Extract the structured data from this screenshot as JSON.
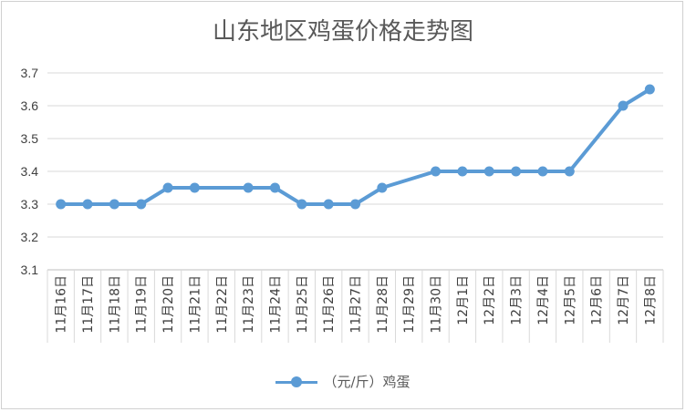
{
  "chart_data": {
    "type": "line",
    "title": "山东地区鸡蛋价格走势图",
    "categories": [
      "11月16日",
      "11月17日",
      "11月18日",
      "11月19日",
      "11月20日",
      "11月21日",
      "11月22日",
      "11月23日",
      "11月24日",
      "11月25日",
      "11月26日",
      "11月27日",
      "11月28日",
      "11月29日",
      "11月30日",
      "12月1日",
      "12月2日",
      "12月3日",
      "12月4日",
      "12月5日",
      "12月6日",
      "12月7日",
      "12月8日"
    ],
    "series": [
      {
        "name": "（元/斤）鸡蛋",
        "color": "#5b9bd5",
        "values": [
          3.3,
          3.3,
          3.3,
          3.3,
          3.35,
          3.35,
          null,
          3.35,
          3.35,
          3.3,
          3.3,
          3.3,
          3.35,
          null,
          3.4,
          3.4,
          3.4,
          3.4,
          3.4,
          3.4,
          null,
          3.6,
          3.65
        ]
      }
    ],
    "yticks": [
      "3.1",
      "3.2",
      "3.3",
      "3.4",
      "3.5",
      "3.6",
      "3.7"
    ],
    "ylim": [
      3.1,
      3.7
    ],
    "grid": true,
    "legend": "bottom"
  }
}
